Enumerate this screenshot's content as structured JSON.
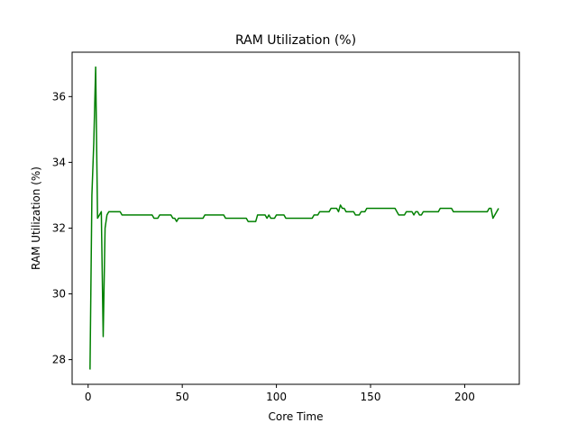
{
  "chart_data": {
    "type": "line",
    "title": "RAM Utilization (%)",
    "xlabel": "Core Time",
    "ylabel": "RAM Utilization (%)",
    "xlim": [
      -8.5,
      229
    ],
    "ylim": [
      27.25,
      37.35
    ],
    "xticks": [
      0,
      50,
      100,
      150,
      200
    ],
    "yticks": [
      28,
      30,
      32,
      34,
      36
    ],
    "grid": false,
    "line_color": "#008000",
    "series": [
      {
        "x": [
          1,
          2,
          3,
          4,
          5,
          6,
          7,
          8,
          9,
          10,
          11,
          12,
          17,
          18,
          34,
          35,
          37,
          38,
          44,
          45,
          46,
          47,
          48,
          49,
          61,
          62,
          72,
          73,
          84,
          85,
          89,
          90,
          94,
          95,
          96,
          97,
          98,
          99,
          100,
          101,
          104,
          105,
          119,
          120,
          122,
          123,
          128,
          129,
          132,
          133,
          134,
          135,
          136,
          137,
          138,
          141,
          142,
          144,
          145,
          147,
          148,
          150,
          151,
          163,
          164,
          165,
          166,
          168,
          169,
          172,
          173,
          174,
          175,
          176,
          177,
          178,
          186,
          187,
          193,
          194,
          212,
          213,
          214,
          215,
          216,
          218
        ],
        "y": [
          27.7,
          33.0,
          34.6,
          36.9,
          32.3,
          32.4,
          32.5,
          28.7,
          32.0,
          32.4,
          32.5,
          32.5,
          32.5,
          32.4,
          32.4,
          32.3,
          32.3,
          32.4,
          32.4,
          32.3,
          32.3,
          32.2,
          32.3,
          32.3,
          32.3,
          32.4,
          32.4,
          32.3,
          32.3,
          32.2,
          32.2,
          32.4,
          32.4,
          32.3,
          32.4,
          32.3,
          32.3,
          32.3,
          32.4,
          32.4,
          32.4,
          32.3,
          32.3,
          32.4,
          32.4,
          32.5,
          32.5,
          32.6,
          32.6,
          32.5,
          32.7,
          32.6,
          32.6,
          32.5,
          32.5,
          32.5,
          32.4,
          32.4,
          32.5,
          32.5,
          32.6,
          32.6,
          32.6,
          32.6,
          32.5,
          32.4,
          32.4,
          32.4,
          32.5,
          32.5,
          32.4,
          32.5,
          32.5,
          32.4,
          32.4,
          32.5,
          32.5,
          32.6,
          32.6,
          32.5,
          32.5,
          32.6,
          32.6,
          32.3,
          32.4,
          32.6
        ]
      }
    ]
  }
}
